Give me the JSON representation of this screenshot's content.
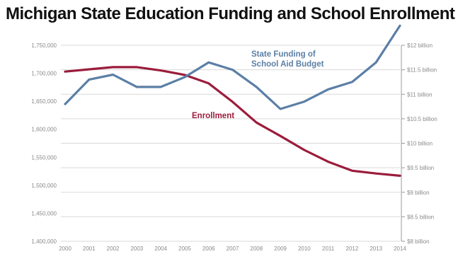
{
  "title": "Michigan State Education Funding and School Enrollment",
  "chart_data": {
    "type": "line",
    "title": "Michigan State Education Funding and School Enrollment",
    "x": [
      "2000",
      "2001",
      "2002",
      "2003",
      "2004",
      "2005",
      "2006",
      "2007",
      "2008",
      "2009",
      "2010",
      "2011",
      "2012",
      "2013",
      "2014"
    ],
    "left_axis": {
      "ylim": [
        1400000,
        1750000
      ],
      "ticks": [
        "1,400,000",
        "1,450,000",
        "1,500,000",
        "1,550,000",
        "1,600,000",
        "1,650,000",
        "1,700,000",
        "1,750,000"
      ],
      "tick_values": [
        1400000,
        1450000,
        1500000,
        1550000,
        1600000,
        1650000,
        1700000,
        1750000
      ]
    },
    "right_axis": {
      "ylim": [
        8,
        12
      ],
      "unit": "billion",
      "ticks": [
        "$8 billion",
        "$8.5 billion",
        "$9 billion",
        "$9.5 billion",
        "$10 billion",
        "$10.5 billion",
        "$11 billion",
        "$11.5 billion",
        "$12 billion"
      ],
      "tick_values": [
        8,
        8.5,
        9,
        9.5,
        10,
        10.5,
        11,
        11.5,
        12
      ]
    },
    "grid": true,
    "series": [
      {
        "name": "Enrollment",
        "axis": "left",
        "color": "#9b1c3c",
        "values": [
          1703000,
          1707000,
          1711000,
          1711000,
          1705000,
          1697000,
          1682000,
          1649000,
          1612000,
          1588000,
          1563000,
          1542000,
          1526000,
          1521000,
          1517000
        ]
      },
      {
        "name": "State Funding of School Aid Budget",
        "label_lines": [
          "State Funding of",
          "School Aid Budget"
        ],
        "axis": "right",
        "color": "#5b7fa6",
        "values": [
          10.8,
          11.3,
          11.4,
          11.15,
          11.15,
          11.35,
          11.65,
          11.5,
          11.15,
          10.7,
          10.85,
          11.1,
          11.25,
          11.65,
          12.4
        ]
      }
    ]
  }
}
